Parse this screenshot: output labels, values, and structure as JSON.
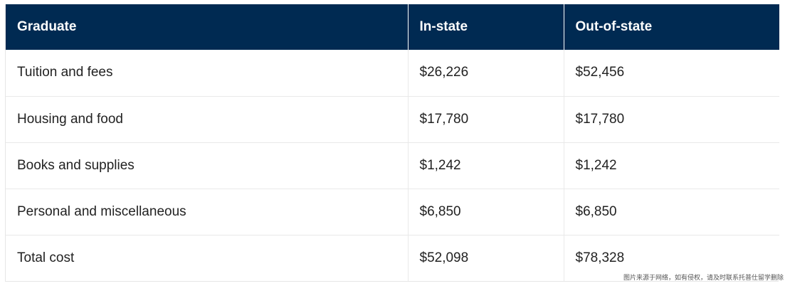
{
  "table": {
    "headers": [
      "Graduate",
      "In-state",
      "Out-of-state"
    ],
    "rows": [
      [
        "Tuition and fees",
        "$26,226",
        "$52,456"
      ],
      [
        "Housing and food",
        "$17,780",
        "$17,780"
      ],
      [
        "Books and supplies",
        "$1,242",
        "$1,242"
      ],
      [
        "Personal and miscellaneous",
        "$6,850",
        "$6,850"
      ],
      [
        "Total cost",
        "$52,098",
        "$78,328"
      ]
    ]
  },
  "watermark": "图片来源于网络，如有侵权，请及时联系托普仕留学删除",
  "colors": {
    "header_bg": "#002a52",
    "header_text": "#ffffff",
    "body_text": "#222222",
    "grid": "#e9e9e9"
  }
}
